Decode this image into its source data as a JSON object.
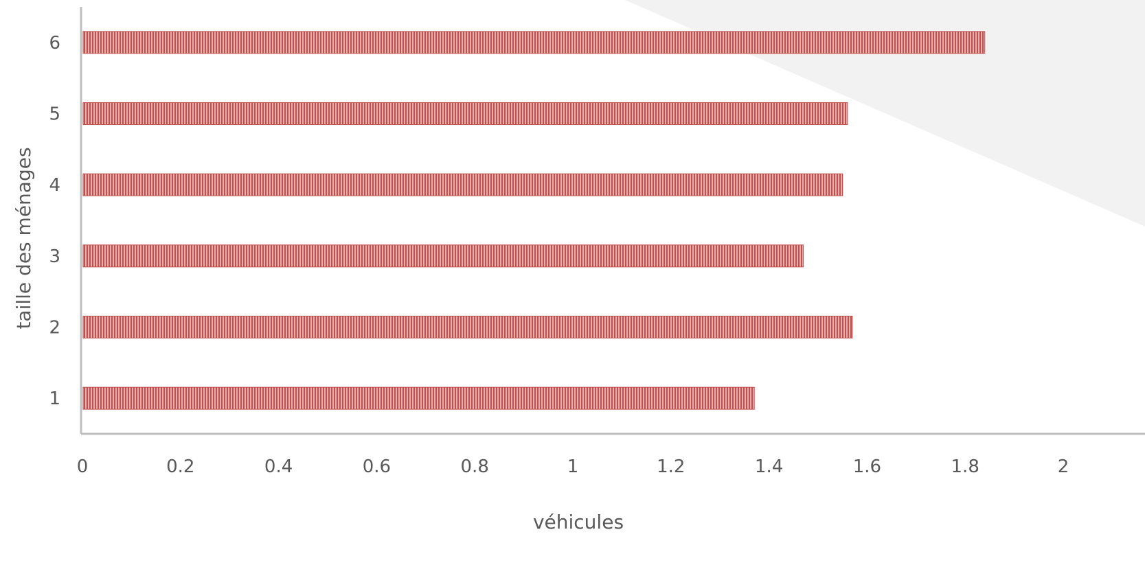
{
  "chart_data": {
    "type": "bar",
    "orientation": "horizontal",
    "title": "",
    "xlabel": "véhicules",
    "ylabel": "taille des ménages",
    "categories": [
      "1",
      "2",
      "3",
      "4",
      "5",
      "6"
    ],
    "series": [
      {
        "values": [
          1.37,
          1.57,
          1.47,
          1.55,
          1.56,
          1.84
        ]
      }
    ],
    "xlim": [
      0,
      2
    ],
    "xticks": [
      "0",
      "0.2",
      "0.4",
      "0.6",
      "0.8",
      "1",
      "1.2",
      "1.4",
      "1.6",
      "1.8",
      "2"
    ],
    "grid": false,
    "legend": "none",
    "colors": {
      "bar": "#c0504d",
      "bar_stripe": "#ffffff",
      "axis": "#bfbfbf",
      "text": "#595959",
      "background_shape": "#f2f2f2"
    }
  }
}
